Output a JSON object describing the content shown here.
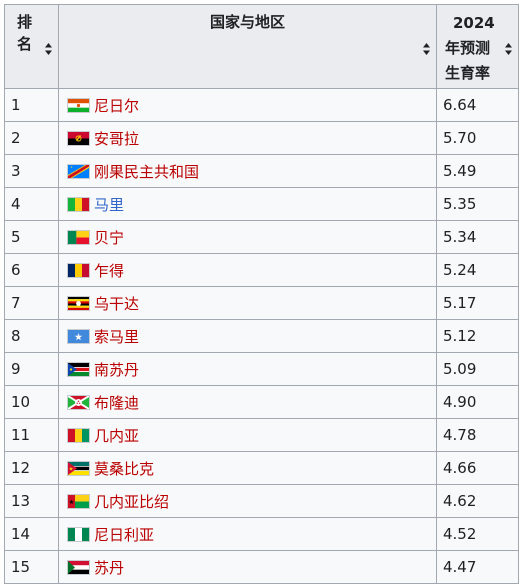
{
  "table": {
    "headers": {
      "rank": "排名",
      "country": "国家与地区",
      "rate": "2024年预测生育率",
      "rate_line1": "2024",
      "rate_line2": "年预测",
      "rate_line3": "生育率",
      "rank_line1": "排",
      "rank_line2": "名"
    },
    "rows": [
      {
        "rank": "1",
        "country": "尼日尔",
        "rate": "6.64",
        "flag": "niger-flag",
        "link": "red"
      },
      {
        "rank": "2",
        "country": "安哥拉",
        "rate": "5.70",
        "flag": "angola-flag",
        "link": "red"
      },
      {
        "rank": "3",
        "country": "刚果民主共和国",
        "rate": "5.49",
        "flag": "drc-flag",
        "link": "red"
      },
      {
        "rank": "4",
        "country": "马里",
        "rate": "5.35",
        "flag": "mali-flag",
        "link": "blue"
      },
      {
        "rank": "5",
        "country": "贝宁",
        "rate": "5.34",
        "flag": "benin-flag",
        "link": "red"
      },
      {
        "rank": "6",
        "country": "乍得",
        "rate": "5.24",
        "flag": "chad-flag",
        "link": "red"
      },
      {
        "rank": "7",
        "country": "乌干达",
        "rate": "5.17",
        "flag": "uganda-flag",
        "link": "red"
      },
      {
        "rank": "8",
        "country": "索马里",
        "rate": "5.12",
        "flag": "somalia-flag",
        "link": "red"
      },
      {
        "rank": "9",
        "country": "南苏丹",
        "rate": "5.09",
        "flag": "south-sudan-flag",
        "link": "red"
      },
      {
        "rank": "10",
        "country": "布隆迪",
        "rate": "4.90",
        "flag": "burundi-flag",
        "link": "red"
      },
      {
        "rank": "11",
        "country": "几内亚",
        "rate": "4.78",
        "flag": "guinea-flag",
        "link": "red"
      },
      {
        "rank": "12",
        "country": "莫桑比克",
        "rate": "4.66",
        "flag": "mozambique-flag",
        "link": "red"
      },
      {
        "rank": "13",
        "country": "几内亚比绍",
        "rate": "4.62",
        "flag": "guinea-bissau-flag",
        "link": "red"
      },
      {
        "rank": "14",
        "country": "尼日利亚",
        "rate": "4.52",
        "flag": "nigeria-flag",
        "link": "red"
      },
      {
        "rank": "15",
        "country": "苏丹",
        "rate": "4.47",
        "flag": "sudan-flag",
        "link": "red"
      }
    ]
  },
  "colors": {
    "header_bg": "#eaecf0",
    "cell_bg": "#f8f9fa",
    "border": "#a2a9b1",
    "link_red": "#ba0000",
    "link_blue": "#3366cc"
  }
}
